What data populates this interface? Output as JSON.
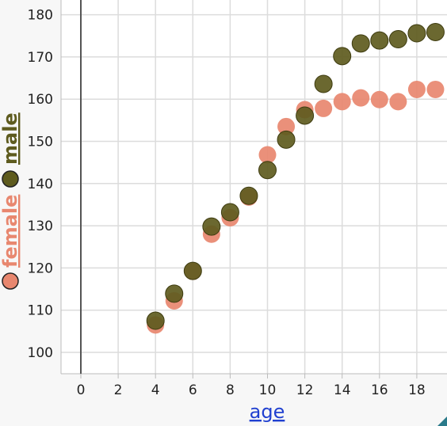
{
  "chart_data": {
    "type": "scatter",
    "xlabel": "age",
    "ylabel": "",
    "xlim": [
      -1,
      20
    ],
    "ylim": [
      95,
      181
    ],
    "x_ticks": [
      0,
      2,
      4,
      6,
      8,
      10,
      12,
      14,
      16,
      18
    ],
    "y_ticks": [
      100,
      110,
      120,
      130,
      140,
      150,
      160,
      170,
      180
    ],
    "grid": true,
    "legend_placement": "left-vertical",
    "series": [
      {
        "name": "female",
        "color": "#e8876f",
        "x": [
          4,
          5,
          6,
          7,
          8,
          9,
          10,
          11,
          12,
          13,
          14,
          15,
          16,
          17,
          18,
          19
        ],
        "y": [
          106.5,
          112.2,
          119.2,
          128.0,
          131.9,
          136.8,
          146.8,
          153.5,
          157.5,
          157.8,
          159.4,
          160.3,
          159.9,
          159.4,
          162.3,
          162.3
        ]
      },
      {
        "name": "male",
        "color": "#5e5b1e",
        "x": [
          4,
          5,
          6,
          7,
          8,
          9,
          10,
          11,
          12,
          13,
          14,
          15,
          16,
          17,
          18,
          19
        ],
        "y": [
          107.5,
          113.9,
          119.3,
          129.8,
          133.2,
          137.1,
          143.2,
          150.4,
          156.1,
          163.6,
          170.2,
          173.2,
          173.9,
          174.2,
          175.6,
          175.9
        ]
      }
    ]
  }
}
